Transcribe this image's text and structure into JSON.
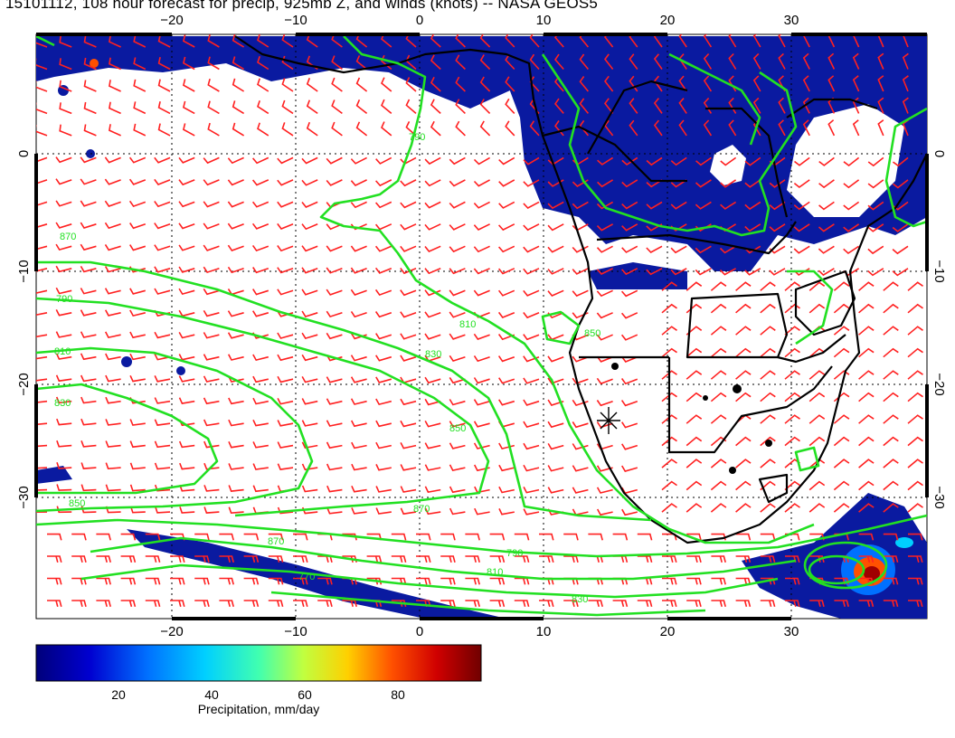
{
  "title": "15101112, 108 hour forecast for precip, 925mb Z, and winds (knots) -- NASA GEOS5",
  "axes": {
    "x_ticks": [
      "−20",
      "−10",
      "0",
      "10",
      "20",
      "30"
    ],
    "y_ticks": [
      "0",
      "−10",
      "−20",
      "−30"
    ]
  },
  "colorbar": {
    "label": "Precipitation, mm/day",
    "ticks": [
      "20",
      "40",
      "60",
      "80"
    ],
    "colors": [
      "#00007a",
      "#0000d0",
      "#0070ff",
      "#00d0ff",
      "#40ffb0",
      "#c0ff40",
      "#ffd000",
      "#ff5000",
      "#d00000",
      "#700000"
    ]
  },
  "contour_labels": [
    "790",
    "810",
    "830",
    "850",
    "870",
    "790",
    "810",
    "830",
    "850",
    "870",
    "770",
    "790",
    "810",
    "830",
    "850",
    "870"
  ],
  "colors": {
    "contour": "#22e022",
    "wind_barbs": "#ff2020",
    "coastline": "#000000",
    "precip": "#0a1aa0"
  }
}
